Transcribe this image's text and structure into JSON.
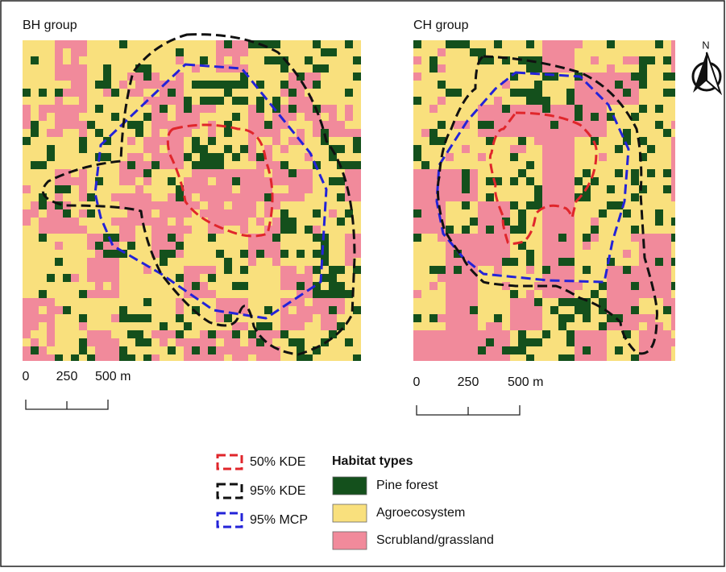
{
  "maps": [
    {
      "title": "BH group",
      "scale_labels": [
        "0",
        "250",
        "500 m"
      ]
    },
    {
      "title": "CH group",
      "scale_labels": [
        "0",
        "250",
        "500 m"
      ]
    }
  ],
  "north": "N",
  "legend": {
    "home_ranges": [
      {
        "label": "50% KDE",
        "color": "#e0262b"
      },
      {
        "label": "95% KDE",
        "color": "#111111"
      },
      {
        "label": "95% MCP",
        "color": "#2323d8"
      }
    ],
    "habitat_title": "Habitat types",
    "habitats": [
      {
        "label": "Pine forest",
        "color": "#14501c"
      },
      {
        "label": "Agroecosystem",
        "color": "#f9e07d"
      },
      {
        "label": "Scrubland/grassland",
        "color": "#f18a9b"
      }
    ]
  }
}
